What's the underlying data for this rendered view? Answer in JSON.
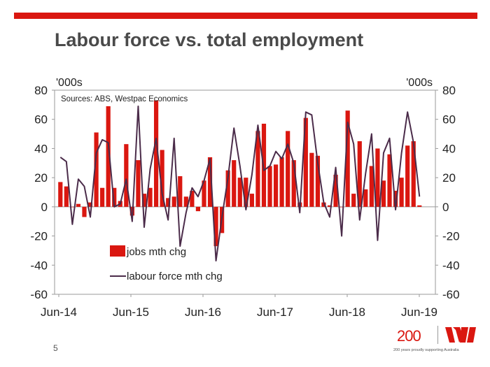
{
  "slide": {
    "title": "Labour force vs. total employment",
    "page_number": "5",
    "logo_text": "200",
    "tagline": "200 years proudly supporting Australia"
  },
  "colors": {
    "accent": "#DA1710",
    "bars": "#DA1710",
    "line": "#4B2C4A",
    "title": "#4a4a4a"
  },
  "chart_data": {
    "type": "bar+line",
    "title": "Labour force vs. total employment",
    "source_note": "Sources: ABS, Westpac Economics",
    "y_unit_left": "'000s",
    "y_unit_right": "'000s",
    "ylim": [
      -60,
      80
    ],
    "yticks": [
      80,
      60,
      40,
      20,
      0,
      -20,
      -40,
      -60
    ],
    "xtick_labels": [
      "Jun-14",
      "Jun-15",
      "Jun-16",
      "Jun-17",
      "Jun-18",
      "Jun-19"
    ],
    "legend": [
      "jobs mth chg",
      "labour force mth chg"
    ],
    "series": [
      {
        "name": "jobs mth chg",
        "type": "bar",
        "values": [
          17,
          14,
          0,
          2,
          -7,
          3,
          51,
          13,
          69,
          13,
          4,
          43,
          -6,
          32,
          9,
          13,
          73,
          39,
          6,
          7,
          21,
          7,
          11,
          -3,
          18,
          34,
          -27,
          -18,
          25,
          32,
          20,
          20,
          9,
          52,
          57,
          28,
          29,
          34,
          52,
          32,
          3,
          61,
          37,
          35,
          3,
          1,
          22,
          0,
          66,
          9,
          45,
          12,
          28,
          40,
          18,
          36,
          11,
          20,
          42,
          45,
          1
        ]
      },
      {
        "name": "labour force mth chg",
        "type": "line",
        "values": [
          34,
          31,
          -12,
          19,
          14,
          -7,
          37,
          46,
          44,
          0,
          2,
          19,
          -10,
          69,
          -14,
          26,
          47,
          9,
          -9,
          47,
          -27,
          -4,
          13,
          7,
          18,
          33,
          -37,
          -7,
          20,
          54,
          28,
          -2,
          22,
          56,
          25,
          28,
          38,
          33,
          43,
          30,
          -4,
          65,
          63,
          30,
          3,
          -7,
          27,
          -20,
          58,
          43,
          -9,
          23,
          50,
          -23,
          37,
          47,
          -2,
          37,
          65,
          44,
          7
        ]
      }
    ]
  }
}
